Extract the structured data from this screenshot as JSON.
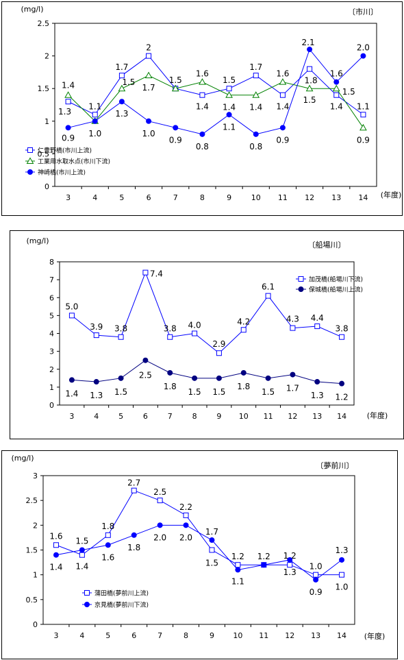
{
  "chart_data": [
    {
      "type": "line",
      "unit": "(mg/l)",
      "river": "〔市川〕",
      "xunit": "(年度)",
      "categories": [
        "3",
        "4",
        "5",
        "6",
        "7",
        "8",
        "9",
        "10",
        "11",
        "12",
        "13",
        "14"
      ],
      "ylim": [
        0,
        2.5
      ],
      "yticks": [
        "0",
        "0.5",
        "1",
        "1.5",
        "2",
        "2.5"
      ],
      "grid": false,
      "legend_position": "bottom-left",
      "series": [
        {
          "name": "仁豊野橋(市川上流)",
          "marker": "open-square",
          "color": "#0000ff",
          "values": [
            1.3,
            1.1,
            1.7,
            2.0,
            1.5,
            1.4,
            1.5,
            1.7,
            1.4,
            1.8,
            1.4,
            1.1
          ],
          "labels": [
            "1.3",
            "1.1",
            "1.7",
            "2",
            "1.5",
            "1.4",
            "1.5",
            "1.7",
            "1.4",
            "1.8",
            "1.4",
            "1.1"
          ]
        },
        {
          "name": "工業用水取水点(市川下流)",
          "marker": "open-triangle",
          "color": "#008000",
          "values": [
            1.4,
            1.0,
            1.5,
            1.7,
            1.5,
            1.6,
            1.4,
            1.4,
            1.6,
            1.5,
            1.5,
            0.9
          ],
          "labels": [
            "1.4",
            "",
            "1.5",
            "1.7",
            "",
            "1.6",
            "1.4",
            "1.4",
            "1.6",
            "1.5",
            "1.5",
            ""
          ]
        },
        {
          "name": "神崎橋(市川上流)",
          "marker": "filled-circle",
          "color": "#0000ff",
          "values": [
            0.9,
            1.0,
            1.3,
            1.0,
            0.9,
            0.8,
            1.1,
            0.8,
            0.9,
            2.1,
            1.6,
            2.0
          ],
          "labels": [
            "0.9",
            "1.0",
            "1.3",
            "1.0",
            "0.9",
            "0.8",
            "1.1",
            "0.8",
            "0.9",
            "2.1",
            "1.6",
            "2.0"
          ]
        }
      ],
      "annotations": [
        "0.9"
      ]
    },
    {
      "type": "line",
      "unit": "(mg/l)",
      "river": "〔船場川〕",
      "xunit": "(年度)",
      "categories": [
        "3",
        "4",
        "5",
        "6",
        "7",
        "8",
        "9",
        "10",
        "11",
        "12",
        "13",
        "14"
      ],
      "ylim": [
        0,
        8
      ],
      "yticks": [
        "0",
        "1",
        "2",
        "3",
        "4",
        "5",
        "6",
        "7",
        "8"
      ],
      "grid": false,
      "legend_position": "top-right",
      "series": [
        {
          "name": "加茂橋(船場川下流)",
          "marker": "open-square",
          "color": "#0000ff",
          "values": [
            5.0,
            3.9,
            3.8,
            7.4,
            3.8,
            4.0,
            2.9,
            4.2,
            6.1,
            4.3,
            4.4,
            3.8
          ],
          "labels": [
            "5.0",
            "3.9",
            "3.8",
            "7.4",
            "3.8",
            "4.0",
            "2.9",
            "4.2",
            "6.1",
            "4.3",
            "4.4",
            "3.8"
          ]
        },
        {
          "name": "保城橋(船場川上流)",
          "marker": "filled-circle",
          "color": "#000080",
          "values": [
            1.4,
            1.3,
            1.5,
            2.5,
            1.8,
            1.5,
            1.5,
            1.8,
            1.5,
            1.7,
            1.3,
            1.2
          ],
          "labels": [
            "1.4",
            "1.3",
            "1.5",
            "2.5",
            "1.8",
            "1.5",
            "1.5",
            "1.8",
            "1.5",
            "1.7",
            "1.3",
            "1.2"
          ]
        }
      ]
    },
    {
      "type": "line",
      "unit": "(mg/l)",
      "river": "〔夢前川〕",
      "xunit": "(年度)",
      "categories": [
        "3",
        "4",
        "5",
        "6",
        "7",
        "8",
        "9",
        "10",
        "11",
        "12",
        "13",
        "14"
      ],
      "ylim": [
        0,
        3
      ],
      "yticks": [
        "0",
        "0.5",
        "1",
        "1.5",
        "2",
        "2.5",
        "3"
      ],
      "grid": false,
      "legend_position": "bottom-left",
      "series": [
        {
          "name": "蒲田橋(夢前川上流)",
          "marker": "open-square",
          "color": "#0000ff",
          "values": [
            1.6,
            1.4,
            1.8,
            2.7,
            2.5,
            2.2,
            1.5,
            1.2,
            1.2,
            1.2,
            1.0,
            1.0
          ],
          "labels": [
            "1.6",
            "1.4",
            "1.8",
            "2.7",
            "2.5",
            "2.2",
            "1.5",
            "1.2",
            "1.2",
            "1.2",
            "1.0",
            "1.0"
          ]
        },
        {
          "name": "京見橋(夢前川下流)",
          "marker": "filled-circle",
          "color": "#0000ff",
          "values": [
            1.4,
            1.5,
            1.6,
            1.8,
            2.0,
            2.0,
            1.7,
            1.1,
            1.2,
            1.3,
            0.9,
            1.3
          ],
          "labels": [
            "1.4",
            "1.5",
            "1.6",
            "1.8",
            "2.0",
            "2.0",
            "1.7",
            "1.1",
            "",
            "1.3",
            "0.9",
            "1.3"
          ]
        }
      ]
    }
  ]
}
